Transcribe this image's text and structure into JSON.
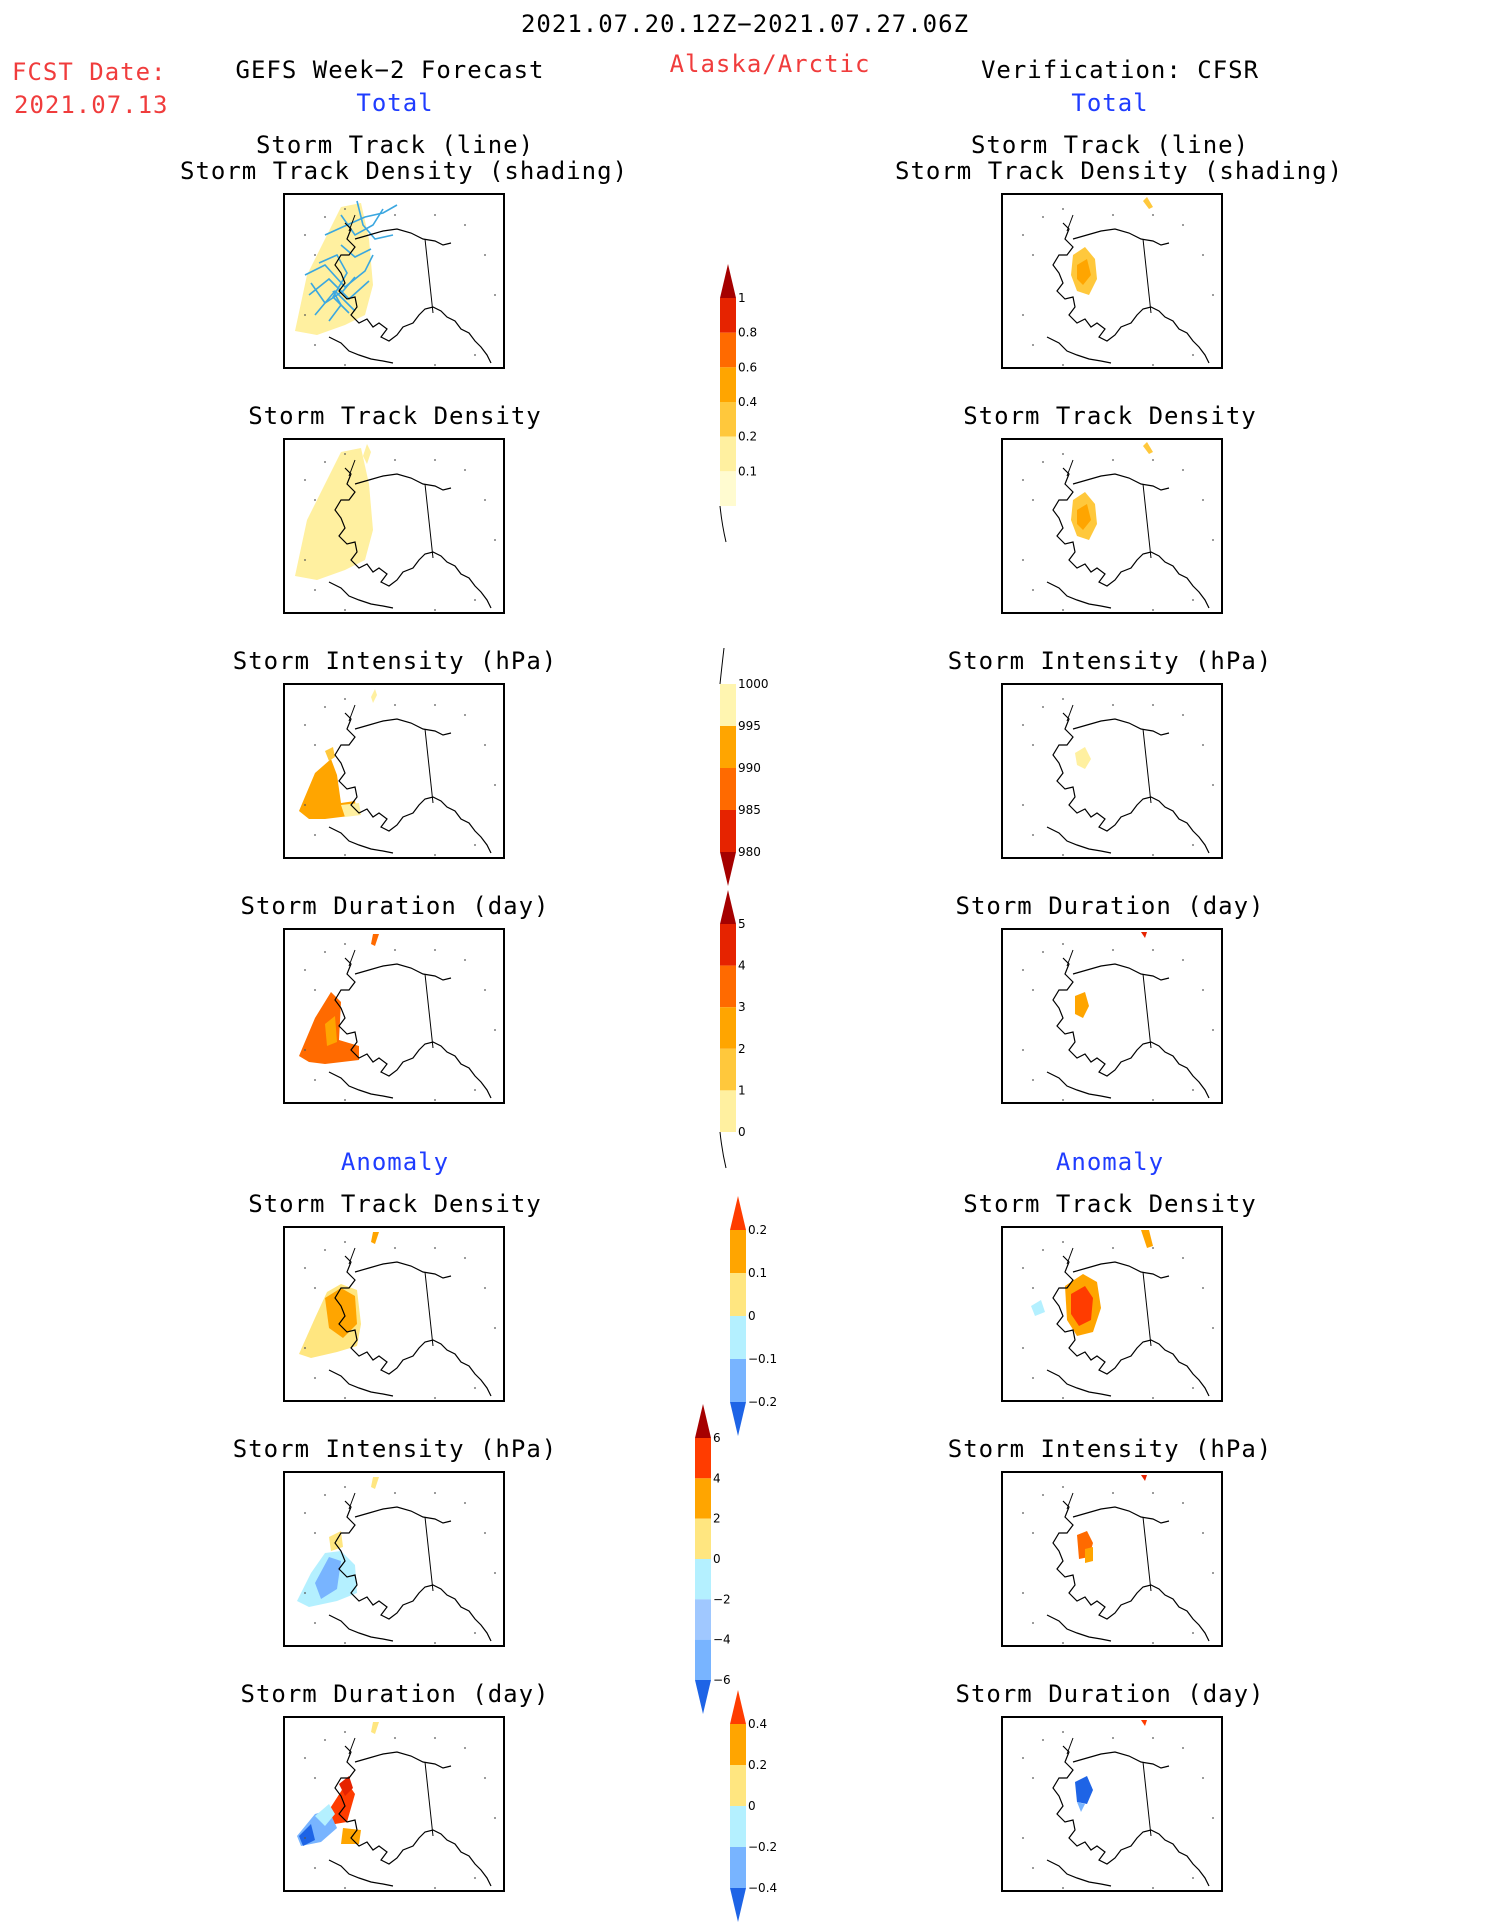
{
  "header": {
    "period": "2021.07.20.12Z−2021.07.27.06Z",
    "fcst_label": "FCST Date:",
    "fcst_date": "2021.07.13",
    "left_title": "GEFS Week−2 Forecast",
    "region": "Alaska/Arctic",
    "right_title": "Verification: CFSR"
  },
  "sections": {
    "total": "Total",
    "anomaly": "Anomaly"
  },
  "panel_titles": {
    "track_line": "Storm Track (line)",
    "track_shading": "Storm Track Density (shading)",
    "density": "Storm Track Density",
    "intensity": "Storm Intensity (hPa)",
    "duration": "Storm Duration (day)"
  },
  "colors": {
    "text_red": "#f03c3c",
    "text_blue": "#1f3cff",
    "track_line": "#3ba7e0"
  },
  "chart_data": [
    {
      "type": "heatmap",
      "title": "Storm Track (line) / Storm Track Density (shading)",
      "column": "GEFS Week-2 Forecast",
      "section": "Total",
      "colorbar": "density"
    },
    {
      "type": "heatmap",
      "title": "Storm Track (line) / Storm Track Density (shading)",
      "column": "Verification: CFSR",
      "section": "Total",
      "colorbar": "density"
    },
    {
      "type": "heatmap",
      "title": "Storm Track Density",
      "column": "GEFS Week-2 Forecast",
      "section": "Total",
      "colorbar": "density"
    },
    {
      "type": "heatmap",
      "title": "Storm Track Density",
      "column": "Verification: CFSR",
      "section": "Total",
      "colorbar": "density"
    },
    {
      "type": "heatmap",
      "title": "Storm Intensity (hPa)",
      "column": "GEFS Week-2 Forecast",
      "section": "Total",
      "colorbar": "intensity"
    },
    {
      "type": "heatmap",
      "title": "Storm Intensity (hPa)",
      "column": "Verification: CFSR",
      "section": "Total",
      "colorbar": "intensity"
    },
    {
      "type": "heatmap",
      "title": "Storm Duration (day)",
      "column": "GEFS Week-2 Forecast",
      "section": "Total",
      "colorbar": "duration"
    },
    {
      "type": "heatmap",
      "title": "Storm Duration (day)",
      "column": "Verification: CFSR",
      "section": "Total",
      "colorbar": "duration"
    },
    {
      "type": "heatmap",
      "title": "Storm Track Density",
      "column": "GEFS Week-2 Forecast",
      "section": "Anomaly",
      "colorbar": "density_anom"
    },
    {
      "type": "heatmap",
      "title": "Storm Track Density",
      "column": "Verification: CFSR",
      "section": "Anomaly",
      "colorbar": "density_anom"
    },
    {
      "type": "heatmap",
      "title": "Storm Intensity (hPa)",
      "column": "GEFS Week-2 Forecast",
      "section": "Anomaly",
      "colorbar": "intensity_anom"
    },
    {
      "type": "heatmap",
      "title": "Storm Intensity (hPa)",
      "column": "Verification: CFSR",
      "section": "Anomaly",
      "colorbar": "intensity_anom"
    },
    {
      "type": "heatmap",
      "title": "Storm Duration (day)",
      "column": "GEFS Week-2 Forecast",
      "section": "Anomaly",
      "colorbar": "duration_anom"
    },
    {
      "type": "heatmap",
      "title": "Storm Duration (day)",
      "column": "Verification: CFSR",
      "section": "Anomaly",
      "colorbar": "duration_anom"
    }
  ],
  "colorbars": {
    "density": {
      "labels": [
        "1",
        "0.8",
        "0.6",
        "0.4",
        "0.2",
        "0.1"
      ],
      "colors": [
        "#a50000",
        "#e62300",
        "#ff6a00",
        "#ffa500",
        "#ffc83c",
        "#fff0a0",
        "#fffbd0"
      ],
      "tail": "bottom-line"
    },
    "intensity": {
      "labels": [
        "1000",
        "995",
        "990",
        "985",
        "980"
      ],
      "colors": [
        "#fff5b0",
        "#ffa500",
        "#ff6a00",
        "#e62300",
        "#a50000"
      ],
      "tail": "top-line"
    },
    "duration": {
      "labels": [
        "5",
        "4",
        "3",
        "2",
        "1",
        "0"
      ],
      "colors": [
        "#a50000",
        "#e62300",
        "#ff6a00",
        "#ffa500",
        "#ffc83c",
        "#fff0a0"
      ],
      "tail": "bottom-line"
    },
    "density_anom": {
      "labels": [
        "0.2",
        "0.1",
        "0",
        "−0.1",
        "−0.2"
      ],
      "colors": [
        "#ff3c00",
        "#ffa500",
        "#ffe680",
        "#b4f0ff",
        "#78b4ff",
        "#1e64e6"
      ]
    },
    "intensity_anom": {
      "labels": [
        "6",
        "4",
        "2",
        "0",
        "−2",
        "−4",
        "−6"
      ],
      "colors": [
        "#a50000",
        "#ff3c00",
        "#ffa500",
        "#ffe680",
        "#b4f0ff",
        "#a0c8ff",
        "#78b4ff",
        "#1e64e6"
      ]
    },
    "duration_anom": {
      "labels": [
        "0.4",
        "0.2",
        "0",
        "−0.2",
        "−0.4"
      ],
      "colors": [
        "#ff3c00",
        "#ffa500",
        "#ffe680",
        "#b4f0ff",
        "#78b4ff",
        "#1e64e6"
      ]
    }
  }
}
